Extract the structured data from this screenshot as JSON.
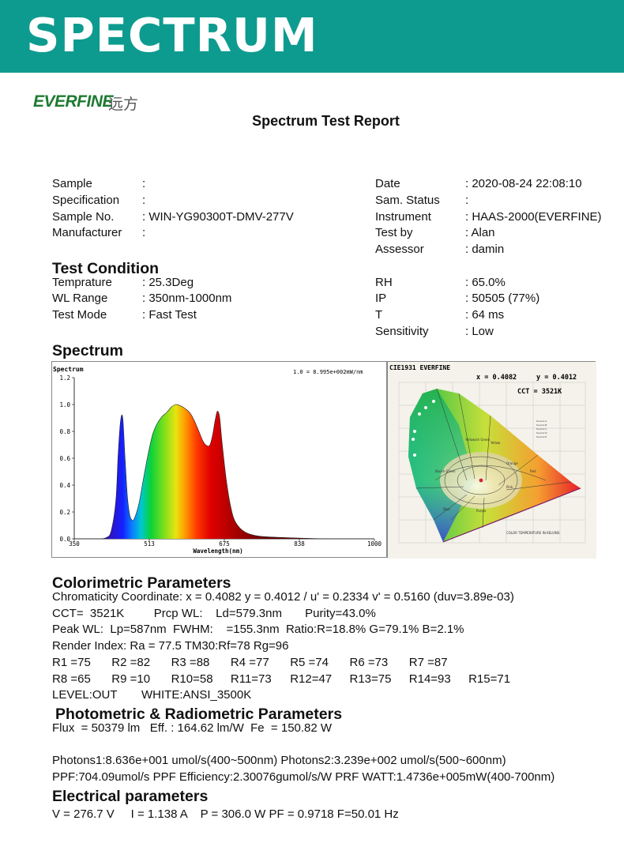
{
  "banner": {
    "title": "SPECTRUM"
  },
  "logo": {
    "brand": "EVERFINE",
    "chinese": "远方"
  },
  "report_title": "Spectrum Test Report",
  "info_left": [
    {
      "label": "Sample",
      "value": ":"
    },
    {
      "label": "Specification",
      "value": ":"
    },
    {
      "label": "Sample No.",
      "value": ": WIN-YG90300T-DMV-277V"
    },
    {
      "label": "Manufacturer",
      "value": ":"
    }
  ],
  "info_right": [
    {
      "label": "Date",
      "value": ": 2020-08-24 22:08:10"
    },
    {
      "label": "Sam. Status",
      "value": ":"
    },
    {
      "label": "Instrument",
      "value": ": HAAS-2000(EVERFINE)"
    },
    {
      "label": "Test by",
      "value": ": Alan"
    },
    {
      "label": "Assessor",
      "value": ": damin"
    }
  ],
  "test_condition": {
    "heading": "Test Condition",
    "left": [
      {
        "label": "Temprature",
        "value": ": 25.3Deg"
      },
      {
        "label": "WL Range",
        "value": ": 350nm-1000nm"
      },
      {
        "label": "Test Mode",
        "value": ": Fast Test"
      }
    ],
    "right": [
      {
        "label": "RH",
        "value": ": 65.0%"
      },
      {
        "label": "IP",
        "value": ": 50505 (77%)"
      },
      {
        "label": "T",
        "value": ": 64 ms"
      },
      {
        "label": "Sensitivity",
        "value": ": Low"
      }
    ]
  },
  "spectrum_heading": "Spectrum",
  "chart_data": [
    {
      "type": "area",
      "title": "Spectrum",
      "annotation": "1.0 = 8.995e+002mW/nm",
      "xlabel": "Wavelength(nm)",
      "ylabel": "",
      "xlim": [
        350,
        1000
      ],
      "ylim": [
        0,
        1.2
      ],
      "x_ticks": [
        "350",
        "513",
        "675",
        "838",
        "1000"
      ],
      "y_ticks": [
        "0.0",
        "0.2",
        "0.4",
        "0.6",
        "0.8",
        "1.0",
        "1.2"
      ],
      "grid": false,
      "x": [
        350,
        400,
        420,
        430,
        440,
        445,
        450,
        455,
        460,
        465,
        470,
        475,
        480,
        490,
        500,
        510,
        520,
        530,
        540,
        550,
        560,
        570,
        580,
        590,
        600,
        610,
        620,
        630,
        640,
        645,
        650,
        655,
        660,
        665,
        670,
        680,
        690,
        700,
        720,
        750,
        800,
        900,
        1000
      ],
      "values": [
        0.0,
        0.0,
        0.01,
        0.06,
        0.28,
        0.62,
        0.87,
        0.9,
        0.6,
        0.32,
        0.18,
        0.14,
        0.15,
        0.26,
        0.45,
        0.63,
        0.78,
        0.86,
        0.91,
        0.94,
        0.98,
        1.0,
        0.99,
        0.97,
        0.94,
        0.88,
        0.8,
        0.72,
        0.69,
        0.71,
        0.78,
        0.88,
        0.95,
        0.9,
        0.72,
        0.42,
        0.22,
        0.12,
        0.05,
        0.02,
        0.01,
        0.0,
        0.0
      ]
    },
    {
      "type": "scatter",
      "title": "CIE1931  EVERFINE",
      "x_label_text": "x = 0.4082",
      "y_label_text": "y = 0.4012",
      "cct_text": "CCT = 3521K",
      "point": {
        "x": 0.4082,
        "y": 0.4012
      }
    }
  ],
  "colorimetric": {
    "heading": "Colorimetric Parameters",
    "lines": [
      "Chromaticity Coordinate: x = 0.4082 y = 0.4012 / u' = 0.2334 v' = 0.5160 (duv=3.89e-03)",
      "CCT=  3521K         Prcp WL:    Ld=579.3nm       Purity=43.0%",
      "Peak WL:  Lp=587nm  FWHM:    =155.3nm  Ratio:R=18.8% G=79.1% B=2.1%",
      "Render Index: Ra = 77.5 TM30:Rf=78 Rg=96"
    ],
    "r_row1": [
      "R1 =75",
      "R2 =82",
      "R3 =88",
      "R4 =77",
      "R5 =74",
      "R6 =73",
      "R7 =87"
    ],
    "r_row2": [
      "R8 =65",
      "R9 =10",
      "R10=58",
      "R11=73",
      "R12=47",
      "R13=75",
      "R14=93",
      "R15=71"
    ],
    "level": "LEVEL:OUT",
    "white": "WHITE:ANSI_3500K"
  },
  "photometric": {
    "heading": "Photometric & Radiometric Parameters",
    "flux_line": "Flux  = 50379 lm   Eff. : 164.62 lm/W  Fe  = 150.82 W",
    "photons_line": "Photons1:8.636e+001 umol/s(400~500nm) Photons2:3.239e+002 umol/s(500~600nm)",
    "ppf_line": "PPF:704.09umol/s  PPF Efficiency:2.30076gumol/s/W  PRF WATT:1.4736e+005mW(400-700nm)"
  },
  "electrical": {
    "heading": "Electrical parameters",
    "line": "V = 276.7 V     I = 1.138 A    P = 306.0 W PF = 0.9718 F=50.01 Hz"
  }
}
